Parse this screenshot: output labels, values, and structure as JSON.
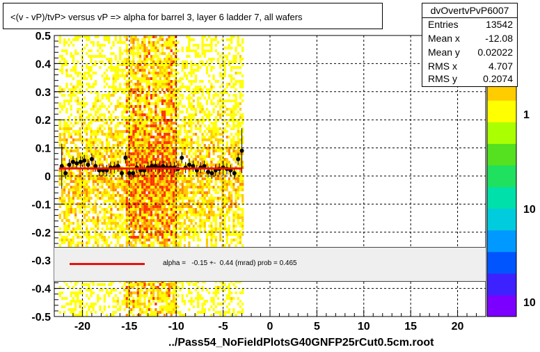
{
  "title": "<(v - vP)/tvP> versus   vP => alpha for barrel 3, layer 6 ladder 7, all wafers",
  "stats": {
    "name": "dvOvertvPvP6007",
    "rows": [
      {
        "key": "Entries",
        "value": "13542"
      },
      {
        "key": "Mean x",
        "value": "-12.08"
      },
      {
        "key": "Mean y",
        "value": "0.02022"
      },
      {
        "key": "RMS x",
        "value": "4.707"
      },
      {
        "key": "RMS y",
        "value": "0.2074"
      }
    ]
  },
  "fit_legend": {
    "text": "alpha =   -0.15 +-  0.44 (mrad) prob = 0.465",
    "color": "#e8120e"
  },
  "x_axis_title": "../Pass54_NoFieldPlotsG40GNFP25rCut0.5cm.root",
  "palette": {
    "labels": [
      "1",
      "10",
      "10"
    ],
    "colors": [
      "#7b00ff",
      "#3d22ff",
      "#0055ff",
      "#0099ff",
      "#00ccdd",
      "#00e0aa",
      "#20e060",
      "#55e020",
      "#aaff00",
      "#ffff00",
      "#ffcc00",
      "#ff8800",
      "#ff3300"
    ]
  },
  "chart_data": {
    "type": "scatter",
    "xlim": [
      -23,
      23
    ],
    "ylim": [
      -0.5,
      0.5
    ],
    "x_ticks": [
      -20,
      -15,
      -10,
      -5,
      0,
      5,
      10,
      15,
      20
    ],
    "x_tick_labels": [
      "-20",
      "-15",
      "-10",
      "-5",
      "0",
      "5",
      "10",
      "15",
      "20"
    ],
    "y_ticks": [
      -0.5,
      -0.4,
      -0.3,
      -0.2,
      -0.1,
      0,
      0.1,
      0.2,
      0.3,
      0.4,
      0.5
    ],
    "y_tick_labels": [
      "-0.5",
      "-0.4",
      "-0.3",
      "-0.2",
      "-0.1",
      "0",
      "0.1",
      "0.2",
      "0.3",
      "0.4",
      "0.5"
    ],
    "grid": true,
    "heatmap_x_range": [
      -22.5,
      -3
    ],
    "heatmap_dense_x_range": [
      -15.5,
      -10
    ],
    "profile": {
      "x": [
        -22.2,
        -21.8,
        -21.4,
        -21.0,
        -20.6,
        -20.2,
        -19.8,
        -19.4,
        -19.0,
        -18.6,
        -18.2,
        -17.8,
        -17.4,
        -17.0,
        -16.6,
        -16.2,
        -15.8,
        -15.4,
        -15.0,
        -14.6,
        -14.2,
        -13.8,
        -13.4,
        -13.0,
        -12.6,
        -12.2,
        -11.8,
        -11.4,
        -11.0,
        -10.6,
        -10.2,
        -9.8,
        -9.4,
        -9.0,
        -8.6,
        -8.2,
        -7.8,
        -7.4,
        -7.0,
        -6.6,
        -6.2,
        -5.8,
        -5.4,
        -5.0,
        -4.6,
        -4.2,
        -3.8,
        -3.4,
        -3.0
      ],
      "y": [
        0.035,
        0.01,
        0.04,
        0.05,
        0.045,
        0.05,
        0.055,
        0.04,
        0.06,
        0.035,
        0.02,
        0.02,
        0.02,
        0.03,
        0.03,
        0.035,
        0.01,
        0.065,
        0.01,
        0.01,
        0.03,
        0.02,
        0.02,
        0.03,
        0.035,
        0.035,
        0.03,
        0.035,
        0.03,
        0.03,
        0.03,
        0.025,
        0.065,
        0.03,
        0.04,
        0.035,
        0.02,
        0.03,
        0.035,
        0.015,
        0.01,
        0.02,
        0.025,
        0.03,
        0.025,
        0.02,
        0.01,
        0.06,
        0.09
      ]
    },
    "fit_line": {
      "x": [
        -22.5,
        -3
      ],
      "y": [
        0.027,
        0.027
      ]
    }
  }
}
